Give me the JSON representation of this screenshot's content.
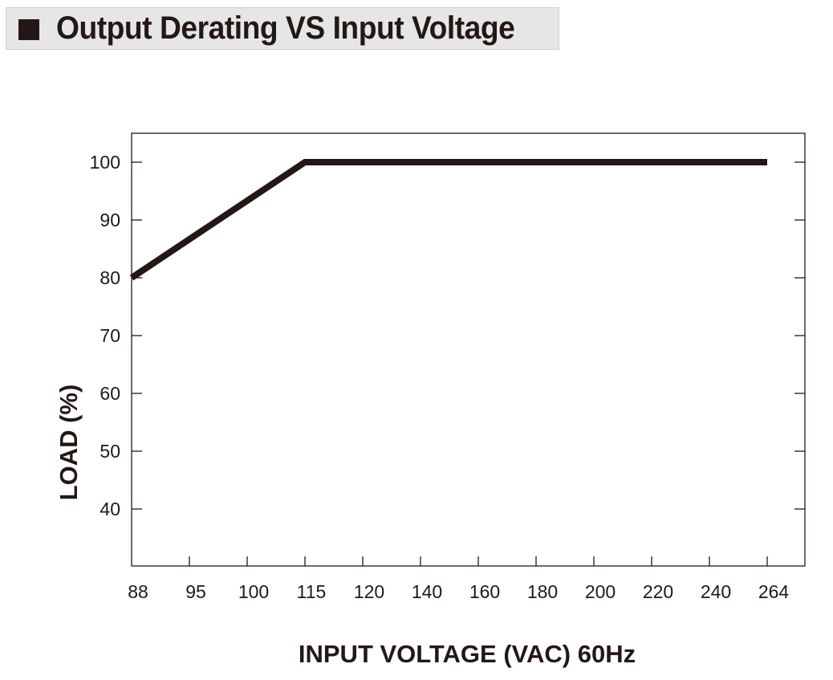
{
  "title": "Output Derating VS Input Voltage",
  "colors": {
    "ink": "#231815",
    "banner": "#e6e6e6"
  },
  "chart_data": {
    "type": "line",
    "xlabel": "INPUT VOLTAGE (VAC) 60Hz",
    "ylabel": "LOAD (%)",
    "x_tick_labels": [
      "88",
      "95",
      "100",
      "115",
      "120",
      "140",
      "160",
      "180",
      "200",
      "220",
      "240",
      "264"
    ],
    "y_tick_labels": [
      "40",
      "50",
      "60",
      "70",
      "80",
      "90",
      "100"
    ],
    "y_ticks": [
      40,
      50,
      60,
      70,
      80,
      90,
      100
    ],
    "ylim": [
      30,
      107
    ],
    "series": [
      {
        "x": [
          "88",
          "115",
          "264"
        ],
        "values": [
          80,
          100,
          100
        ]
      }
    ],
    "grid": false
  }
}
